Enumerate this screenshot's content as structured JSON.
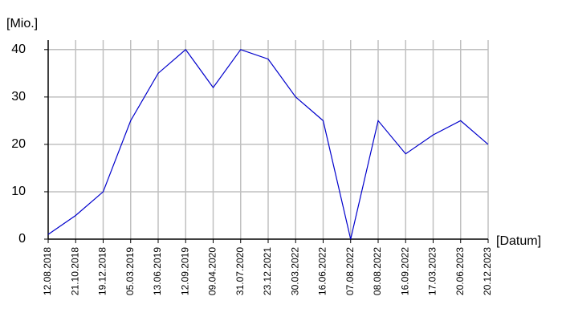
{
  "chart_data": {
    "type": "line",
    "y_label": "[Mio.]",
    "x_label": "[Datum]",
    "categories": [
      "12.08.2018",
      "21.10.2018",
      "19.12.2018",
      "05.03.2019",
      "13.06.2019",
      "12.09.2019",
      "09.04.2020",
      "31.07.2020",
      "23.12.2021",
      "30.03.2022",
      "16.06.2022",
      "07.08.2022",
      "08.08.2022",
      "16.09.2022",
      "17.03.2023",
      "20.06.2023",
      "20.12.2023"
    ],
    "values": [
      1,
      5,
      10,
      25,
      35,
      40,
      32,
      40,
      38,
      30,
      25,
      0,
      25,
      18,
      22,
      25,
      20
    ],
    "color": "#0000cc",
    "ylim": [
      0,
      42
    ],
    "yticks": [
      0,
      10,
      20,
      30,
      40
    ],
    "grid": true
  }
}
